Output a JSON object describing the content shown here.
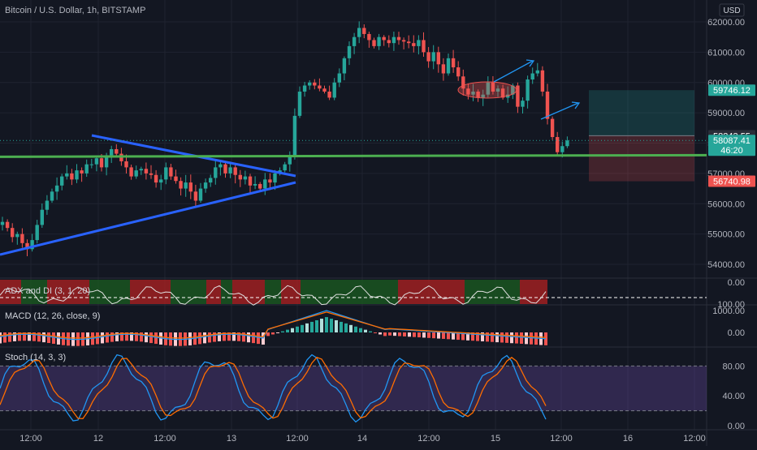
{
  "header": {
    "symbol": "Bitcoin / U.S. Dollar, 1h, BITSTAMP"
  },
  "currency": "USD",
  "colors": {
    "bg": "#131722",
    "grid": "#1f2330",
    "up": "#26a69a",
    "down": "#ef5350",
    "trendline": "#2962ff",
    "support": "#4caf50",
    "axis_text": "#b2b5be"
  },
  "chart_data": [
    {
      "type": "candlestick",
      "title": "Bitcoin / U.S. Dollar, 1h, BITSTAMP",
      "ylim": [
        53700,
        62400
      ],
      "y_ticks": [
        54000,
        55000,
        56000,
        57000,
        58000,
        59000,
        60000,
        61000,
        62000
      ],
      "y_tick_labels": [
        "54000.00",
        "55000.00",
        "56000.00",
        "57000.00",
        "58000.00",
        "59000.00",
        "60000.00",
        "61000.00",
        "62000.00"
      ],
      "x_tick_labels": [
        "12:00",
        "12",
        "12:00",
        "13",
        "12:00",
        "14",
        "12:00",
        "15",
        "12:00",
        "16",
        "12:00"
      ],
      "price_labels": [
        {
          "name": "target",
          "value": 59746.12,
          "label": "59746.12"
        },
        {
          "name": "entry",
          "value": 58243.55,
          "label": "58243.55"
        },
        {
          "name": "last",
          "value": 58087.41,
          "label": "58087.41",
          "countdown": "46:20"
        },
        {
          "name": "stop",
          "value": 56740.98,
          "label": "56740.98"
        }
      ],
      "support_level": 57550,
      "closes": [
        55400,
        55200,
        54900,
        55000,
        54700,
        54500,
        54800,
        55300,
        55800,
        56100,
        56400,
        56600,
        56900,
        57000,
        56800,
        57100,
        57000,
        57300,
        57300,
        57500,
        57200,
        57600,
        57800,
        57650,
        57400,
        57200,
        56900,
        57100,
        57150,
        57000,
        56950,
        56700,
        56800,
        57200,
        56900,
        56750,
        56500,
        56700,
        56400,
        56100,
        56500,
        56700,
        56850,
        57200,
        57300,
        57000,
        57200,
        56950,
        56800,
        56900,
        56600,
        56650,
        56500,
        56800,
        56700,
        57000,
        57100,
        57300,
        57550,
        58900,
        59700,
        59900,
        60000,
        59900,
        59800,
        59700,
        59500,
        60000,
        60300,
        60800,
        61200,
        61500,
        61800,
        61600,
        61400,
        61200,
        61500,
        61400,
        61300,
        61500,
        61400,
        61350,
        61300,
        61200,
        61400,
        61000,
        60700,
        61000,
        60600,
        60300,
        60800,
        60500,
        60200,
        59800,
        59600,
        59700,
        59500,
        59600,
        60000,
        59700,
        59800,
        59500,
        59600,
        59900,
        59200,
        59400,
        60100,
        60300,
        60400,
        59700,
        58800,
        58200,
        57700,
        57900,
        58087
      ]
    },
    {
      "type": "line",
      "title": "ADX and DI (3, 1, 20)",
      "ylim": [
        0,
        100
      ],
      "y_tick_labels": [
        "100.00",
        "0.00"
      ]
    },
    {
      "type": "line",
      "title": "MACD (12, 26, close, 9)",
      "y_tick_labels": [
        "1000.00",
        "0.00"
      ]
    },
    {
      "type": "line",
      "title": "Stoch (14, 3, 3)",
      "ylim": [
        0,
        100
      ],
      "y_tick_labels": [
        "80.00",
        "40.00",
        "0.00"
      ],
      "bands": [
        20,
        80
      ]
    }
  ]
}
